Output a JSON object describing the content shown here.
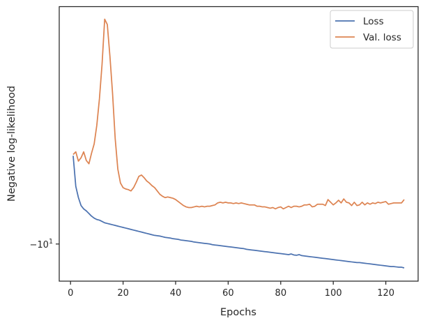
{
  "chart_data": {
    "type": "line",
    "title": "",
    "xlabel": "Epochs",
    "ylabel": "Negative log-likelihood",
    "y_scale": "symlog",
    "grid": false,
    "legend_position": "top-right",
    "xlim": [
      -4.3,
      132.3
    ],
    "ylim": [
      -10.56,
      -6.42
    ],
    "x_ticks": [
      {
        "value": 0,
        "label": "0"
      },
      {
        "value": 20,
        "label": "20"
      },
      {
        "value": 40,
        "label": "40"
      },
      {
        "value": 60,
        "label": "60"
      },
      {
        "value": 80,
        "label": "80"
      },
      {
        "value": 100,
        "label": "100"
      },
      {
        "value": 120,
        "label": "120"
      }
    ],
    "y_ticks": [
      {
        "value": -10,
        "label_base": "−10",
        "label_exp": "1"
      }
    ],
    "series": [
      {
        "name": "Loss",
        "color": "#4c72b0",
        "x": [
          1,
          2,
          3,
          4,
          5,
          6,
          7,
          8,
          9,
          10,
          11,
          12,
          13,
          14,
          15,
          16,
          17,
          18,
          19,
          20,
          21,
          22,
          23,
          24,
          25,
          26,
          27,
          28,
          29,
          30,
          31,
          32,
          33,
          34,
          35,
          36,
          37,
          38,
          39,
          40,
          41,
          42,
          43,
          44,
          45,
          46,
          47,
          48,
          49,
          50,
          51,
          52,
          53,
          54,
          55,
          56,
          57,
          58,
          59,
          60,
          61,
          62,
          63,
          64,
          65,
          66,
          67,
          68,
          69,
          70,
          71,
          72,
          73,
          74,
          75,
          76,
          77,
          78,
          79,
          80,
          81,
          82,
          83,
          84,
          85,
          86,
          87,
          88,
          89,
          90,
          91,
          92,
          93,
          94,
          95,
          96,
          97,
          98,
          99,
          100,
          101,
          102,
          103,
          104,
          105,
          106,
          107,
          108,
          109,
          110,
          111,
          112,
          113,
          114,
          115,
          116,
          117,
          118,
          119,
          120,
          121,
          122,
          123,
          124,
          125,
          126,
          127
        ],
        "y": [
          -8.67,
          -9.13,
          -9.3,
          -9.42,
          -9.47,
          -9.5,
          -9.54,
          -9.58,
          -9.61,
          -9.63,
          -9.64,
          -9.66,
          -9.68,
          -9.69,
          -9.7,
          -9.71,
          -9.72,
          -9.73,
          -9.74,
          -9.75,
          -9.76,
          -9.77,
          -9.78,
          -9.79,
          -9.8,
          -9.81,
          -9.82,
          -9.83,
          -9.84,
          -9.85,
          -9.86,
          -9.87,
          -9.875,
          -9.88,
          -9.89,
          -9.9,
          -9.905,
          -9.91,
          -9.92,
          -9.925,
          -9.93,
          -9.94,
          -9.945,
          -9.95,
          -9.955,
          -9.96,
          -9.97,
          -9.975,
          -9.98,
          -9.985,
          -9.99,
          -9.995,
          -10.0,
          -10.01,
          -10.015,
          -10.02,
          -10.025,
          -10.03,
          -10.035,
          -10.04,
          -10.045,
          -10.05,
          -10.055,
          -10.06,
          -10.065,
          -10.07,
          -10.08,
          -10.085,
          -10.09,
          -10.095,
          -10.1,
          -10.105,
          -10.11,
          -10.115,
          -10.12,
          -10.125,
          -10.13,
          -10.135,
          -10.14,
          -10.145,
          -10.15,
          -10.155,
          -10.16,
          -10.15,
          -10.165,
          -10.17,
          -10.16,
          -10.175,
          -10.18,
          -10.185,
          -10.19,
          -10.195,
          -10.2,
          -10.205,
          -10.21,
          -10.215,
          -10.22,
          -10.225,
          -10.23,
          -10.235,
          -10.24,
          -10.245,
          -10.25,
          -10.255,
          -10.26,
          -10.265,
          -10.27,
          -10.275,
          -10.28,
          -10.28,
          -10.285,
          -10.29,
          -10.295,
          -10.3,
          -10.305,
          -10.31,
          -10.315,
          -10.32,
          -10.325,
          -10.33,
          -10.335,
          -10.34,
          -10.34,
          -10.345,
          -10.35,
          -10.35,
          -10.36
        ]
      },
      {
        "name": "Val. loss",
        "color": "#dd8452",
        "x": [
          1,
          2,
          3,
          4,
          5,
          6,
          7,
          8,
          9,
          10,
          11,
          12,
          13,
          14,
          15,
          16,
          17,
          18,
          19,
          20,
          21,
          22,
          23,
          24,
          25,
          26,
          27,
          28,
          29,
          30,
          31,
          32,
          33,
          34,
          35,
          36,
          37,
          38,
          39,
          40,
          41,
          42,
          43,
          44,
          45,
          46,
          47,
          48,
          49,
          50,
          51,
          52,
          53,
          54,
          55,
          56,
          57,
          58,
          59,
          60,
          61,
          62,
          63,
          64,
          65,
          66,
          67,
          68,
          69,
          70,
          71,
          72,
          73,
          74,
          75,
          76,
          77,
          78,
          79,
          80,
          81,
          82,
          83,
          84,
          85,
          86,
          87,
          88,
          89,
          90,
          91,
          92,
          93,
          94,
          95,
          96,
          97,
          98,
          99,
          100,
          101,
          102,
          103,
          104,
          105,
          106,
          107,
          108,
          109,
          110,
          111,
          112,
          113,
          114,
          115,
          116,
          117,
          118,
          119,
          120,
          121,
          122,
          123,
          124,
          125,
          126,
          127
        ],
        "y": [
          -8.65,
          -8.61,
          -8.75,
          -8.7,
          -8.61,
          -8.74,
          -8.79,
          -8.63,
          -8.49,
          -8.21,
          -7.81,
          -7.29,
          -6.61,
          -6.69,
          -7.17,
          -7.73,
          -8.41,
          -8.87,
          -9.08,
          -9.15,
          -9.17,
          -9.18,
          -9.2,
          -9.15,
          -9.07,
          -8.98,
          -8.96,
          -9.0,
          -9.05,
          -9.08,
          -9.12,
          -9.15,
          -9.2,
          -9.25,
          -9.28,
          -9.3,
          -9.29,
          -9.3,
          -9.31,
          -9.33,
          -9.36,
          -9.39,
          -9.42,
          -9.44,
          -9.45,
          -9.45,
          -9.44,
          -9.43,
          -9.44,
          -9.43,
          -9.44,
          -9.43,
          -9.43,
          -9.42,
          -9.41,
          -9.38,
          -9.37,
          -9.38,
          -9.37,
          -9.38,
          -9.38,
          -9.39,
          -9.38,
          -9.39,
          -9.38,
          -9.39,
          -9.4,
          -9.41,
          -9.41,
          -9.41,
          -9.43,
          -9.43,
          -9.44,
          -9.44,
          -9.45,
          -9.46,
          -9.45,
          -9.47,
          -9.45,
          -9.44,
          -9.47,
          -9.45,
          -9.43,
          -9.45,
          -9.43,
          -9.43,
          -9.44,
          -9.43,
          -9.41,
          -9.41,
          -9.4,
          -9.44,
          -9.43,
          -9.4,
          -9.4,
          -9.4,
          -9.42,
          -9.33,
          -9.37,
          -9.41,
          -9.38,
          -9.34,
          -9.38,
          -9.32,
          -9.37,
          -9.38,
          -9.42,
          -9.37,
          -9.42,
          -9.41,
          -9.37,
          -9.41,
          -9.38,
          -9.4,
          -9.38,
          -9.39,
          -9.37,
          -9.38,
          -9.37,
          -9.36,
          -9.4,
          -9.39,
          -9.38,
          -9.38,
          -9.38,
          -9.38,
          -9.33
        ]
      }
    ]
  }
}
